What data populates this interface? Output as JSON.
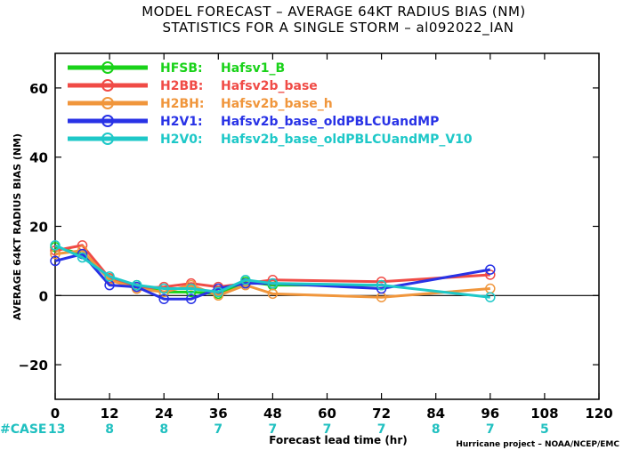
{
  "chart_data": {
    "type": "line",
    "title_line1": "MODEL FORECAST – AVERAGE 64KT RADIUS BIAS (NM)",
    "title_line2": "STATISTICS FOR A SINGLE STORM – al092022_IAN",
    "xlabel": "Forecast lead time (hr)",
    "ylabel": "AVERAGE 64KT RADIUS BIAS (NM)",
    "xlim": [
      0,
      120
    ],
    "ylim": [
      -30,
      70
    ],
    "xticks": [
      0,
      12,
      24,
      36,
      48,
      60,
      72,
      84,
      96,
      108,
      120
    ],
    "yticks": [
      -20,
      0,
      20,
      40,
      60
    ],
    "legend_position": "top-left",
    "cases_label": "#CASE",
    "cases": [
      {
        "x": 0,
        "n": "13"
      },
      {
        "x": 12,
        "n": "8"
      },
      {
        "x": 24,
        "n": "8"
      },
      {
        "x": 36,
        "n": "7"
      },
      {
        "x": 48,
        "n": "7"
      },
      {
        "x": 60,
        "n": "7"
      },
      {
        "x": 72,
        "n": "7"
      },
      {
        "x": 84,
        "n": "8"
      },
      {
        "x": 96,
        "n": "7"
      },
      {
        "x": 108,
        "n": "5"
      }
    ],
    "credit": "Hurricane project – NOAA/NCEP/EMC",
    "series": [
      {
        "id": "HFSB",
        "label": "HFSB:",
        "desc": "Hafsv1_B",
        "color": "#19d219",
        "x": [
          0,
          6,
          12,
          18,
          24,
          30,
          36,
          42,
          48,
          72
        ],
        "y": [
          14,
          12,
          5,
          3,
          1,
          1,
          0.5,
          4,
          3,
          3
        ]
      },
      {
        "id": "H2BB",
        "label": "H2BB:",
        "desc": "Hafsv2b_base",
        "color": "#f04b46",
        "x": [
          0,
          6,
          12,
          18,
          24,
          30,
          36,
          42,
          48,
          72,
          96
        ],
        "y": [
          13,
          14.5,
          5,
          2,
          2.5,
          3.5,
          2.5,
          3.5,
          4.5,
          4,
          6
        ]
      },
      {
        "id": "H2BH",
        "label": "H2BH:",
        "desc": "Hafsv2b_base_h",
        "color": "#f0963c",
        "x": [
          0,
          6,
          12,
          18,
          24,
          30,
          36,
          42,
          48,
          72,
          96
        ],
        "y": [
          12,
          13,
          4.5,
          2,
          1,
          3,
          0,
          3,
          0.5,
          -0.5,
          2
        ]
      },
      {
        "id": "H2V1",
        "label": "H2V1:",
        "desc": "Hafsv2b_base_oldPBLCUandMP",
        "color": "#2832e6",
        "x": [
          0,
          6,
          12,
          18,
          24,
          30,
          36,
          42,
          48,
          72,
          96
        ],
        "y": [
          10,
          12,
          3,
          2.5,
          -1,
          -1,
          2,
          3.5,
          3.5,
          2,
          7.5
        ]
      },
      {
        "id": "H2V0",
        "label": "H2V0:",
        "desc": "Hafsv2b_base_oldPBLCUandMP_V10",
        "color": "#1ec8c8",
        "x": [
          0,
          6,
          12,
          18,
          24,
          30,
          36,
          42,
          48,
          72,
          96
        ],
        "y": [
          14.5,
          11,
          5.5,
          3,
          2,
          2,
          1,
          4.5,
          3.5,
          3,
          -0.5
        ]
      }
    ]
  }
}
